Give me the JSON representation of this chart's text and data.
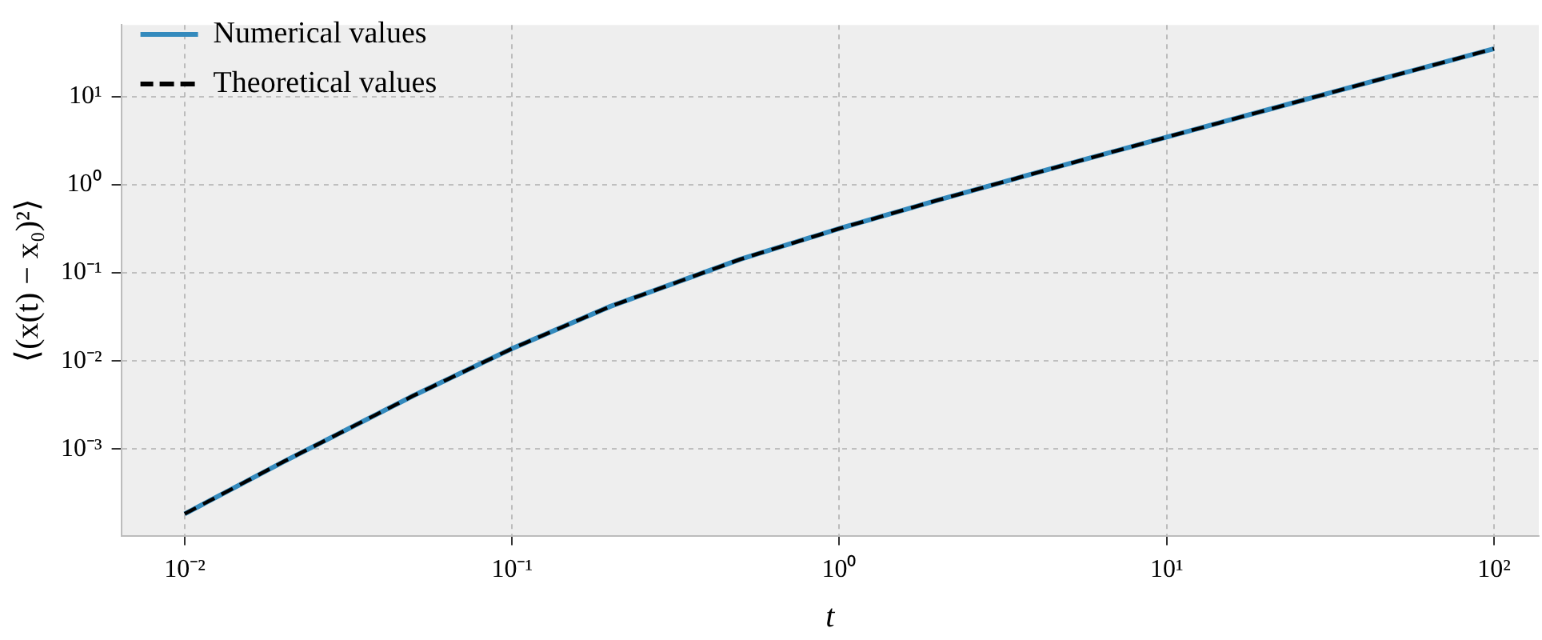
{
  "chart_data": {
    "type": "line",
    "xlabel": "t",
    "ylabel": "⟨(x(t) − x₀)²⟩",
    "x": [
      0.01,
      0.02,
      0.05,
      0.1,
      0.2,
      0.5,
      1,
      2,
      5,
      10,
      20,
      50,
      100
    ],
    "series": [
      {
        "name": "Numerical values",
        "color": "#348abd",
        "line_style": "solid",
        "values": [
          0.000184,
          0.000716,
          0.00404,
          0.0138,
          0.0417,
          0.143,
          0.318,
          0.668,
          1.72,
          3.47,
          6.97,
          17.5,
          35.0
        ]
      },
      {
        "name": "Theoretical values",
        "color": "#000000",
        "line_style": "dashed",
        "values": [
          0.000184,
          0.000716,
          0.00404,
          0.0138,
          0.0417,
          0.143,
          0.318,
          0.668,
          1.72,
          3.47,
          6.97,
          17.5,
          35.0
        ]
      }
    ],
    "log": "xy",
    "xlim": [
      0.0064,
      137
    ],
    "ylim": [
      0.000104,
      65
    ],
    "xticks": [
      {
        "value": 0.01,
        "label": "10⁻²"
      },
      {
        "value": 0.1,
        "label": "10⁻¹"
      },
      {
        "value": 1,
        "label": "10⁰"
      },
      {
        "value": 10,
        "label": "10¹"
      },
      {
        "value": 100,
        "label": "10²"
      }
    ],
    "yticks": [
      {
        "value": 0.001,
        "label": "10⁻³"
      },
      {
        "value": 0.01,
        "label": "10⁻²"
      },
      {
        "value": 0.1,
        "label": "10⁻¹"
      },
      {
        "value": 1,
        "label": "10⁰"
      },
      {
        "value": 10,
        "label": "10¹"
      }
    ],
    "grid": true,
    "legend": "top left",
    "marker": "none"
  }
}
